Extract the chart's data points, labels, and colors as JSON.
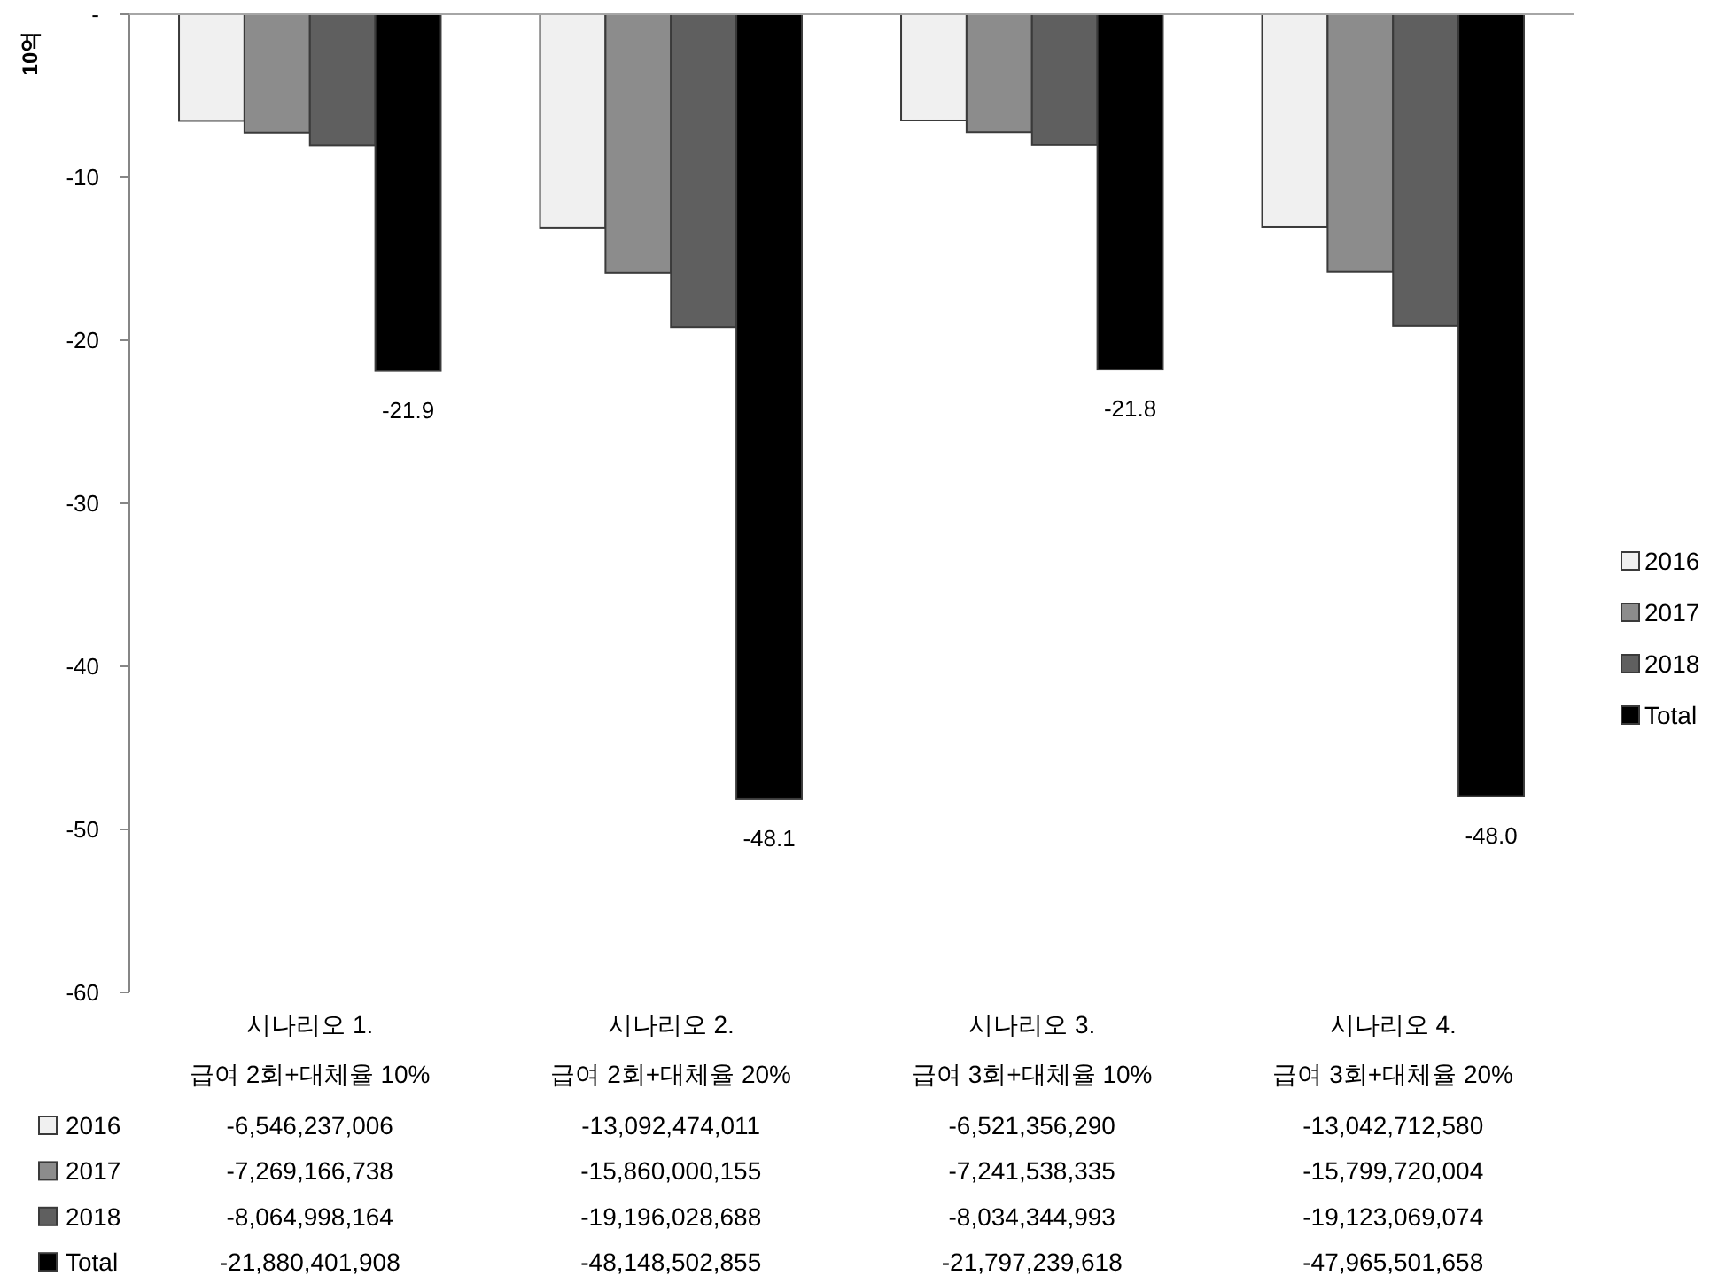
{
  "chart_data": {
    "type": "bar",
    "ylabel": "10억",
    "categories": [
      "시나리오 1.\n급여 2회+대체율 10%",
      "시나리오 2.\n급여 2회+대체율 20%",
      "시나리오 3.\n급여 3회+대체율 10%",
      "시나리오 4.\n급여 3회+대체율 20%"
    ],
    "series": [
      {
        "name": "2016",
        "color": "#f0f0f0",
        "values": [
          -6.546237006,
          -13.092474011,
          -6.52135629,
          -13.04271258
        ]
      },
      {
        "name": "2017",
        "color": "#8c8c8c",
        "values": [
          -7.269166738,
          -15.860000155,
          -7.241538335,
          -15.799720004
        ]
      },
      {
        "name": "2018",
        "color": "#5f5f5f",
        "values": [
          -8.064998164,
          -19.196028688,
          -8.034344993,
          -19.123069074
        ]
      },
      {
        "name": "Total",
        "color": "#000000",
        "values": [
          -21.880401908,
          -48.148502855,
          -21.797239618,
          -47.965501658
        ],
        "value_labels": [
          "-21.9",
          "-48.1",
          "-21.8",
          "-48.0"
        ]
      }
    ],
    "ylim": [
      -60,
      0
    ],
    "yticks": [
      -60,
      -50,
      -40,
      -30,
      -20,
      -10,
      {
        "value": 0,
        "label": "-"
      }
    ],
    "legend": "right",
    "annotations": [
      "-6,546,237,006",
      "-13,092,474,011",
      "-6,521,356,290",
      "-13,042,712,580",
      "-7,269,166,738",
      "-15,860,000,155",
      "-7,241,538,335",
      "-15,799,720,004",
      "-8,064,998,164",
      "-19,196,028,688",
      "-8,034,344,993",
      "-19,123,069,074",
      "-21,880,401,908",
      "-48,148,502,855",
      "-21,797,239,618",
      "-47,965,501,658"
    ]
  }
}
